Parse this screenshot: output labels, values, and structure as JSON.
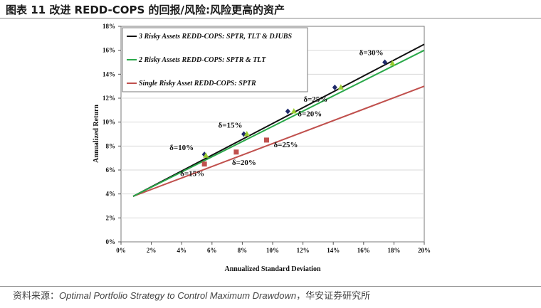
{
  "header": {
    "title": "图表 11  改进 REDD-COPS 的回报/风险:风险更高的资产"
  },
  "footer": {
    "source_prefix": "资料来源：",
    "source_ref": "Optimal Portfolio Strategy to Control Maximum Drawdown",
    "source_suffix": "，华安证券研究所"
  },
  "chart_data": {
    "type": "line",
    "title": "",
    "xlabel": "Annualized Standard Deviation",
    "ylabel": "Annualized Return",
    "xlim": [
      0,
      20
    ],
    "ylim": [
      0,
      18
    ],
    "x_ticks": [
      0,
      2,
      4,
      6,
      8,
      10,
      12,
      14,
      16,
      18,
      20
    ],
    "y_ticks": [
      0,
      2,
      4,
      6,
      8,
      10,
      12,
      14,
      16,
      18
    ],
    "x_tick_labels": [
      "0%",
      "2%",
      "4%",
      "6%",
      "8%",
      "10%",
      "12%",
      "14%",
      "16%",
      "18%",
      "20%"
    ],
    "y_tick_labels": [
      "0%",
      "2%",
      "4%",
      "6%",
      "8%",
      "10%",
      "12%",
      "14%",
      "16%",
      "18%"
    ],
    "legend_position": "top-left",
    "series": [
      {
        "name": "3 Risky Assets REDD-COPS: SPTR, TLT & DJUBS",
        "color": "#111111",
        "marker": "diamond",
        "marker_color": "#1f2a6b",
        "x": [
          0.8,
          20
        ],
        "y": [
          3.8,
          16.5
        ],
        "markers": [
          {
            "x": 5.5,
            "y": 7.3,
            "label": "δ=10%"
          },
          {
            "x": 8.1,
            "y": 9.0,
            "label": "δ=15%"
          },
          {
            "x": 11.0,
            "y": 10.9,
            "label": "δ=20%"
          },
          {
            "x": 14.1,
            "y": 12.9,
            "label": "δ=25%"
          },
          {
            "x": 17.4,
            "y": 15.0,
            "label": "δ=30%"
          }
        ]
      },
      {
        "name": "2 Risky Assets REDD-COPS: SPTR & TLT",
        "color": "#2aa84a",
        "marker": "triangle",
        "marker_color": "#9acd32",
        "x": [
          0.8,
          20
        ],
        "y": [
          3.8,
          16.0
        ],
        "markers": [
          {
            "x": 5.6,
            "y": 7.2
          },
          {
            "x": 8.3,
            "y": 9.0
          },
          {
            "x": 11.4,
            "y": 10.9
          },
          {
            "x": 14.5,
            "y": 12.9
          },
          {
            "x": 17.9,
            "y": 14.9
          }
        ]
      },
      {
        "name": "Single Risky Asset  REDD-COPS: SPTR",
        "color": "#c0504d",
        "marker": "square",
        "marker_color": "#c0504d",
        "x": [
          0.8,
          20
        ],
        "y": [
          3.8,
          13.0
        ],
        "markers": [
          {
            "x": 5.5,
            "y": 6.5,
            "label": "δ=15%"
          },
          {
            "x": 7.6,
            "y": 7.5,
            "label": "δ=20%"
          },
          {
            "x": 9.6,
            "y": 8.5,
            "label": "δ=25%"
          }
        ]
      }
    ],
    "annotations": [
      {
        "text": "δ=30%",
        "x": 17.4,
        "y": 15.0
      },
      {
        "text": "δ=25%",
        "x": 14.1,
        "y": 12.9
      },
      {
        "text": "δ=20%",
        "x": 11.0,
        "y": 10.9
      },
      {
        "text": "δ=15%",
        "x": 8.1,
        "y": 9.0
      },
      {
        "text": "δ=10%",
        "x": 5.5,
        "y": 7.3
      },
      {
        "text": "δ=15%",
        "x": 5.5,
        "y": 6.5
      },
      {
        "text": "δ=20%",
        "x": 7.6,
        "y": 7.5
      },
      {
        "text": "δ=25%",
        "x": 9.6,
        "y": 8.5
      }
    ]
  }
}
